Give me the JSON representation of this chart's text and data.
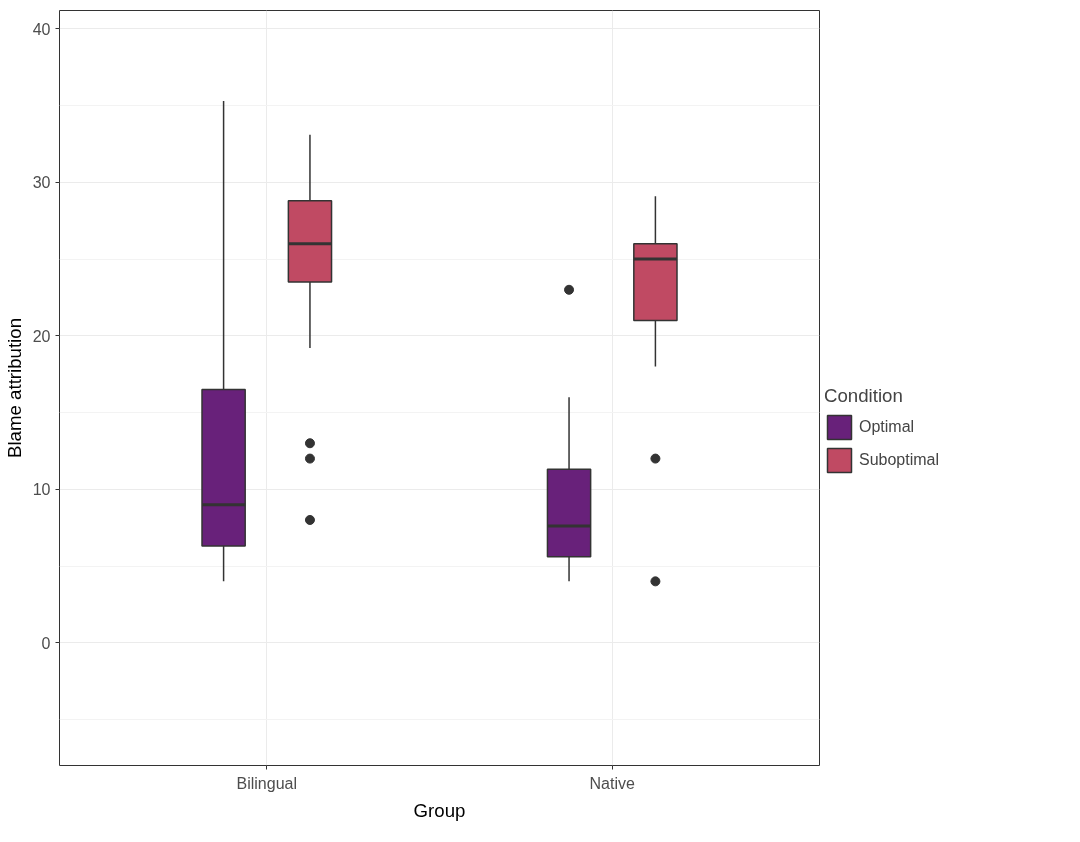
{
  "chart_data": {
    "type": "box",
    "xlabel": "Group",
    "ylabel": "Blame attribution",
    "legend_title": "Condition",
    "categories": [
      "Bilingual",
      "Native"
    ],
    "ylim": [
      -8,
      41.2
    ],
    "yticks": [
      0,
      10,
      20,
      30,
      40
    ],
    "grid": true,
    "legend": "right",
    "series": [
      {
        "name": "Optimal",
        "color": "#68217a",
        "boxes": [
          {
            "low": 4,
            "q1": 6.3,
            "median": 9,
            "q3": 16.5,
            "high": 35.3
          },
          {
            "low": 4,
            "q1": 5.6,
            "median": 7.6,
            "q3": 11.3,
            "high": 16,
            "outliers": [
              23
            ]
          }
        ]
      },
      {
        "name": "Suboptimal",
        "color": "#c04a63",
        "boxes": [
          {
            "low": 19.2,
            "q1": 23.5,
            "median": 26,
            "q3": 28.8,
            "high": 33.1,
            "outliers": [
              13,
              12,
              8
            ]
          },
          {
            "low": 18,
            "q1": 21,
            "median": 25,
            "q3": 26,
            "high": 29.1,
            "outliers": [
              12,
              4
            ]
          }
        ]
      }
    ]
  }
}
